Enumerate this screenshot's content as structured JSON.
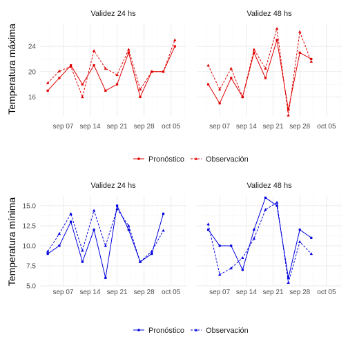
{
  "chart_data": [
    {
      "type": "line",
      "panel": "Validez 24 hs",
      "row_label": "Temperatura máxima",
      "color": "#e00000",
      "x": [
        "2019-09-03",
        "2019-09-06",
        "2019-09-09",
        "2019-09-12",
        "2019-09-15",
        "2019-09-18",
        "2019-09-21",
        "2019-09-24",
        "2019-09-27",
        "2019-09-30",
        "2019-10-03",
        "2019-10-06"
      ],
      "series": [
        {
          "name": "Pronóstico",
          "style": "solid",
          "marker": "square",
          "values": [
            17,
            19,
            21,
            18,
            21,
            17,
            18,
            23,
            16,
            20,
            20,
            24
          ]
        },
        {
          "name": "Observación",
          "style": "dashed",
          "marker": "triangle",
          "values": [
            18.2,
            20.1,
            20.8,
            16,
            23.3,
            20.5,
            19.5,
            23.5,
            17.2,
            20,
            20,
            25
          ]
        }
      ],
      "ylim": [
        13,
        27.5
      ],
      "yticks": [
        16,
        20,
        24
      ],
      "xticks": [
        "sep 07",
        "sep 14",
        "sep 21",
        "sep 28",
        "oct 05"
      ]
    },
    {
      "type": "line",
      "panel": "Validez 48 hs",
      "row_label": "Temperatura máxima",
      "color": "#e00000",
      "x": [
        "2019-09-04",
        "2019-09-07",
        "2019-09-10",
        "2019-09-13",
        "2019-09-16",
        "2019-09-19",
        "2019-09-22",
        "2019-09-25",
        "2019-09-28",
        "2019-10-01",
        "2019-10-04",
        "2019-10-07"
      ],
      "series": [
        {
          "name": "Pronóstico",
          "style": "solid",
          "marker": "square",
          "values": [
            18,
            15,
            19,
            16,
            23,
            19,
            25,
            14,
            23,
            22,
            null,
            null
          ]
        },
        {
          "name": "Observación",
          "style": "dashed",
          "marker": "triangle",
          "values": [
            21,
            17.2,
            20.5,
            16,
            23.5,
            20.5,
            26.8,
            13.1,
            26.3,
            21.6,
            null,
            null
          ]
        }
      ],
      "ylim": [
        13,
        27.5
      ],
      "yticks": [
        16,
        20,
        24
      ],
      "xticks": [
        "sep 07",
        "sep 14",
        "sep 21",
        "sep 28",
        "oct 05"
      ]
    },
    {
      "type": "line",
      "panel": "Validez 24 hs",
      "row_label": "Temperatura mínima",
      "color": "#0000e0",
      "x": [
        "2019-09-03",
        "2019-09-06",
        "2019-09-09",
        "2019-09-12",
        "2019-09-15",
        "2019-09-18",
        "2019-09-21",
        "2019-09-24",
        "2019-09-27",
        "2019-09-30",
        "2019-10-03",
        "2019-10-06"
      ],
      "series": [
        {
          "name": "Pronóstico",
          "style": "solid",
          "marker": "square",
          "values": [
            9,
            10,
            13,
            8,
            12,
            6,
            15,
            12,
            8,
            9,
            14,
            null
          ]
        },
        {
          "name": "Observación",
          "style": "dashed",
          "marker": "triangle",
          "values": [
            9.3,
            11.5,
            14,
            9.4,
            14.4,
            10,
            14.6,
            12.5,
            8,
            9.3,
            11.9,
            null
          ]
        }
      ],
      "ylim": [
        5,
        16.2
      ],
      "yticks": [
        5.0,
        7.5,
        10.0,
        12.5,
        15.0
      ],
      "ytick_labels": [
        "5.0",
        "7.5",
        "10.0",
        "12.5",
        "15.0"
      ],
      "xticks": [
        "sep 07",
        "sep 14",
        "sep 21",
        "sep 28",
        "oct 05"
      ]
    },
    {
      "type": "line",
      "panel": "Validez 48 hs",
      "row_label": "Temperatura mínima",
      "color": "#0000e0",
      "x": [
        "2019-09-04",
        "2019-09-07",
        "2019-09-10",
        "2019-09-13",
        "2019-09-16",
        "2019-09-19",
        "2019-09-22",
        "2019-09-25",
        "2019-09-28",
        "2019-10-01",
        "2019-10-04",
        "2019-10-07"
      ],
      "series": [
        {
          "name": "Pronóstico",
          "style": "solid",
          "marker": "square",
          "values": [
            12,
            10,
            10,
            7,
            12,
            16,
            15,
            6,
            12,
            11,
            null,
            null
          ]
        },
        {
          "name": "Observación",
          "style": "dashed",
          "marker": "triangle",
          "values": [
            12.7,
            6.4,
            7.2,
            8.5,
            10.9,
            14.5,
            15.4,
            5.4,
            10.5,
            9,
            null,
            null
          ]
        }
      ],
      "ylim": [
        5,
        16.2
      ],
      "yticks": [
        5.0,
        7.5,
        10.0,
        12.5,
        15.0
      ],
      "ytick_labels": [
        "5.0",
        "7.5",
        "10.0",
        "12.5",
        "15.0"
      ],
      "xticks": [
        "sep 07",
        "sep 14",
        "sep 21",
        "sep 28",
        "oct 05"
      ]
    }
  ],
  "xaxis": {
    "min": "2019-09-01",
    "max": "2019-10-09",
    "tick_dates": [
      "2019-09-07",
      "2019-09-14",
      "2019-09-21",
      "2019-09-28",
      "2019-10-05"
    ],
    "tick_labels": [
      "sep 07",
      "sep 14",
      "sep 21",
      "sep 28",
      "oct 05"
    ]
  },
  "legends": [
    {
      "color": "#e00000",
      "items": [
        {
          "label": "Pronóstico",
          "style": "solid",
          "marker": "square"
        },
        {
          "label": "Observación",
          "style": "dashed",
          "marker": "triangle"
        }
      ]
    },
    {
      "color": "#0000e0",
      "items": [
        {
          "label": "Pronóstico",
          "style": "solid",
          "marker": "square"
        },
        {
          "label": "Observación",
          "style": "dashed",
          "marker": "triangle"
        }
      ]
    }
  ],
  "colors": {
    "grid_major": "#ebebeb",
    "grid_minor": "#f5f5f5",
    "max": "#e00000",
    "min": "#0000e0"
  }
}
